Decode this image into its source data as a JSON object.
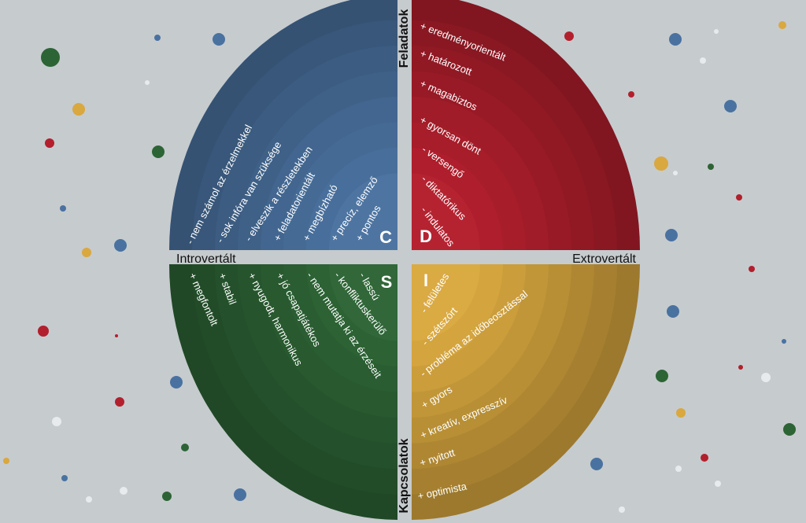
{
  "axes": {
    "introvert": "Introvertált",
    "extrovert": "Extrovertált",
    "tasks": "Feladatok",
    "relations": "Kapcsolatok"
  },
  "colors": {
    "background": "#c6cbce",
    "C": "#4a72a0",
    "D": "#b31f2d",
    "S": "#2d6435",
    "I": "#d9a83f"
  },
  "quadrants": {
    "C": {
      "letter": "C",
      "items": [
        "- nem számol az érzelmekkel",
        "- sok infóra van szüksége",
        "- elveszik a részletekben",
        "+ feladatorientált",
        "+ megbízható",
        "+ precíz, elemző",
        "+ pontos"
      ]
    },
    "D": {
      "letter": "D",
      "items": [
        "+ eredményorientált",
        "+ határozott",
        "+ magabiztos",
        "+ gyorsan dönt",
        "- versengő",
        "- diktatórikus",
        "- indulatos"
      ]
    },
    "S": {
      "letter": "S",
      "items": [
        "+ megfontolt",
        "+ stabil",
        "+ nyugodt, harmonikus",
        "+ jó csapatjátékos",
        "- nem mutatja ki az érzéseit",
        "- konfliktuskerülő",
        "- lassú"
      ]
    },
    "I": {
      "letter": "I",
      "items": [
        "- felületes",
        "- szétszórt",
        "- probléma az időbeosztással",
        "+ gyors",
        "+ kreatív, expresszív",
        "+ nyitott",
        "+ optimista"
      ]
    }
  }
}
